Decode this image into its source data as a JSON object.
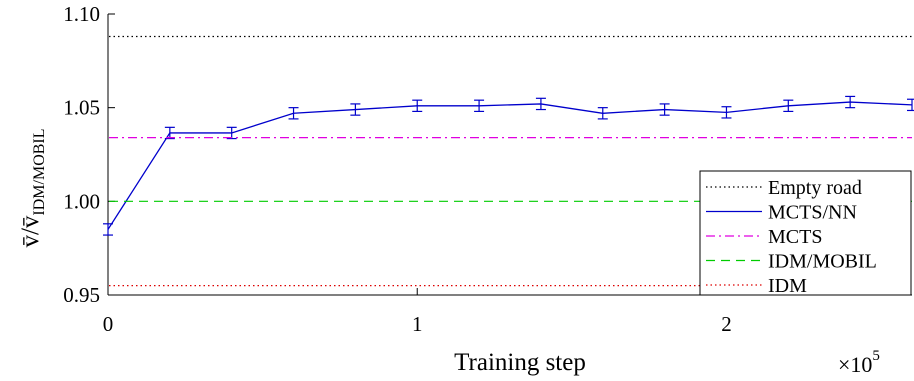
{
  "chart_data": {
    "type": "line",
    "xlabel": "Training step",
    "ylabel_main": "v̄/v̄",
    "ylabel_sub": "IDM/MOBIL",
    "x_multiplier_base": "×10",
    "x_multiplier_exp": "5",
    "xlim": [
      0,
      260000
    ],
    "ylim": [
      0.95,
      1.1
    ],
    "x_ticks": [
      {
        "value": 0,
        "label": "0"
      },
      {
        "value": 100000,
        "label": "1"
      },
      {
        "value": 200000,
        "label": "2"
      }
    ],
    "y_ticks": [
      {
        "value": 0.95,
        "label": "0.95"
      },
      {
        "value": 1.0,
        "label": "1.00"
      },
      {
        "value": 1.05,
        "label": "1.05"
      },
      {
        "value": 1.1,
        "label": "1.10"
      }
    ],
    "legend_position": "right",
    "series": [
      {
        "name": "Empty road",
        "kind": "hline",
        "style": "dotted",
        "color": "#000000",
        "y": 1.088
      },
      {
        "name": "MCTS/NN",
        "kind": "errorbar-line",
        "style": "solid",
        "color": "#0000cc",
        "x": [
          0,
          20000,
          40000,
          60000,
          80000,
          100000,
          120000,
          140000,
          160000,
          180000,
          200000,
          220000,
          240000,
          260000
        ],
        "y": [
          0.985,
          1.0365,
          1.0365,
          1.047,
          1.049,
          1.051,
          1.051,
          1.052,
          1.047,
          1.049,
          1.0475,
          1.051,
          1.053,
          1.0515
        ],
        "err": [
          0.003,
          0.003,
          0.003,
          0.003,
          0.003,
          0.003,
          0.003,
          0.003,
          0.003,
          0.003,
          0.003,
          0.003,
          0.003,
          0.003
        ]
      },
      {
        "name": "MCTS",
        "kind": "hline",
        "style": "dashdot",
        "color": "#e000e0",
        "y": 1.034
      },
      {
        "name": "IDM/MOBIL",
        "kind": "hline",
        "style": "dashed",
        "color": "#00cc00",
        "y": 1.0
      },
      {
        "name": "IDM",
        "kind": "hline",
        "style": "dotted",
        "color": "#dd0000",
        "y": 0.955
      }
    ]
  }
}
